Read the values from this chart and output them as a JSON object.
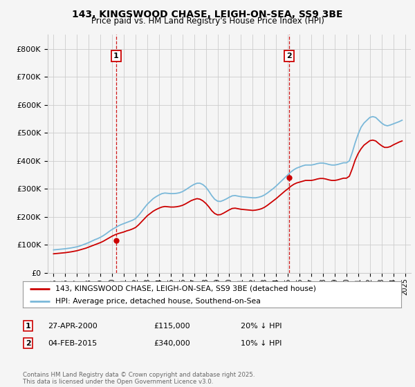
{
  "title": "143, KINGSWOOD CHASE, LEIGH-ON-SEA, SS9 3BE",
  "subtitle": "Price paid vs. HM Land Registry's House Price Index (HPI)",
  "legend_line1": "143, KINGSWOOD CHASE, LEIGH-ON-SEA, SS9 3BE (detached house)",
  "legend_line2": "HPI: Average price, detached house, Southend-on-Sea",
  "sale1_date": "27-APR-2000",
  "sale1_price": "£115,000",
  "sale1_hpi": "20% ↓ HPI",
  "sale1_x": 2000.32,
  "sale1_y": 115000,
  "sale2_date": "04-FEB-2015",
  "sale2_price": "£340,000",
  "sale2_hpi": "10% ↓ HPI",
  "sale2_x": 2015.09,
  "sale2_y": 340000,
  "dashed_line1_x": 2000.32,
  "dashed_line2_x": 2015.09,
  "ylim": [
    0,
    850000
  ],
  "xlim": [
    1994.5,
    2025.5
  ],
  "yticks": [
    0,
    100000,
    200000,
    300000,
    400000,
    500000,
    600000,
    700000,
    800000
  ],
  "xticks": [
    1995,
    1996,
    1997,
    1998,
    1999,
    2000,
    2001,
    2002,
    2003,
    2004,
    2005,
    2006,
    2007,
    2008,
    2009,
    2010,
    2011,
    2012,
    2013,
    2014,
    2015,
    2016,
    2017,
    2018,
    2019,
    2020,
    2021,
    2022,
    2023,
    2024,
    2025
  ],
  "hpi_color": "#7ab8d9",
  "price_color": "#cc0000",
  "dashed_color": "#cc0000",
  "background_color": "#f5f5f5",
  "grid_color": "#cccccc",
  "footer": "Contains HM Land Registry data © Crown copyright and database right 2025.\nThis data is licensed under the Open Government Licence v3.0.",
  "hpi_data_x": [
    1995.0,
    1995.25,
    1995.5,
    1995.75,
    1996.0,
    1996.25,
    1996.5,
    1996.75,
    1997.0,
    1997.25,
    1997.5,
    1997.75,
    1998.0,
    1998.25,
    1998.5,
    1998.75,
    1999.0,
    1999.25,
    1999.5,
    1999.75,
    2000.0,
    2000.25,
    2000.5,
    2000.75,
    2001.0,
    2001.25,
    2001.5,
    2001.75,
    2002.0,
    2002.25,
    2002.5,
    2002.75,
    2003.0,
    2003.25,
    2003.5,
    2003.75,
    2004.0,
    2004.25,
    2004.5,
    2004.75,
    2005.0,
    2005.25,
    2005.5,
    2005.75,
    2006.0,
    2006.25,
    2006.5,
    2006.75,
    2007.0,
    2007.25,
    2007.5,
    2007.75,
    2008.0,
    2008.25,
    2008.5,
    2008.75,
    2009.0,
    2009.25,
    2009.5,
    2009.75,
    2010.0,
    2010.25,
    2010.5,
    2010.75,
    2011.0,
    2011.25,
    2011.5,
    2011.75,
    2012.0,
    2012.25,
    2012.5,
    2012.75,
    2013.0,
    2013.25,
    2013.5,
    2013.75,
    2014.0,
    2014.25,
    2014.5,
    2014.75,
    2015.0,
    2015.25,
    2015.5,
    2015.75,
    2016.0,
    2016.25,
    2016.5,
    2016.75,
    2017.0,
    2017.25,
    2017.5,
    2017.75,
    2018.0,
    2018.25,
    2018.5,
    2018.75,
    2019.0,
    2019.25,
    2019.5,
    2019.75,
    2020.0,
    2020.25,
    2020.5,
    2020.75,
    2021.0,
    2021.25,
    2021.5,
    2021.75,
    2022.0,
    2022.25,
    2022.5,
    2022.75,
    2023.0,
    2023.25,
    2023.5,
    2023.75,
    2024.0,
    2024.25,
    2024.5,
    2024.75
  ],
  "hpi_data_y": [
    82000,
    83000,
    84000,
    85000,
    86000,
    87500,
    89000,
    91000,
    93000,
    96000,
    100000,
    104000,
    108000,
    113000,
    118000,
    122000,
    127000,
    133000,
    140000,
    148000,
    155000,
    161000,
    167000,
    172000,
    176000,
    180000,
    184000,
    188000,
    194000,
    205000,
    218000,
    232000,
    245000,
    255000,
    265000,
    272000,
    278000,
    283000,
    285000,
    284000,
    283000,
    283000,
    284000,
    286000,
    290000,
    296000,
    303000,
    310000,
    316000,
    320000,
    320000,
    315000,
    306000,
    292000,
    276000,
    263000,
    256000,
    255000,
    259000,
    264000,
    270000,
    275000,
    276000,
    274000,
    272000,
    271000,
    270000,
    269000,
    268000,
    268000,
    270000,
    273000,
    278000,
    285000,
    293000,
    301000,
    310000,
    320000,
    330000,
    340000,
    350000,
    360000,
    368000,
    374000,
    378000,
    382000,
    385000,
    385000,
    385000,
    387000,
    390000,
    392000,
    392000,
    390000,
    387000,
    385000,
    385000,
    387000,
    390000,
    393000,
    393000,
    400000,
    430000,
    465000,
    495000,
    520000,
    535000,
    545000,
    555000,
    558000,
    555000,
    545000,
    535000,
    528000,
    525000,
    528000,
    532000,
    536000,
    540000,
    545000
  ],
  "price_data_x": [
    1995.0,
    1995.25,
    1995.5,
    1995.75,
    1996.0,
    1996.25,
    1996.5,
    1996.75,
    1997.0,
    1997.25,
    1997.5,
    1997.75,
    1998.0,
    1998.25,
    1998.5,
    1998.75,
    1999.0,
    1999.25,
    1999.5,
    1999.75,
    2000.0,
    2000.25,
    2000.5,
    2000.75,
    2001.0,
    2001.25,
    2001.5,
    2001.75,
    2002.0,
    2002.25,
    2002.5,
    2002.75,
    2003.0,
    2003.25,
    2003.5,
    2003.75,
    2004.0,
    2004.25,
    2004.5,
    2004.75,
    2005.0,
    2005.25,
    2005.5,
    2005.75,
    2006.0,
    2006.25,
    2006.5,
    2006.75,
    2007.0,
    2007.25,
    2007.5,
    2007.75,
    2008.0,
    2008.25,
    2008.5,
    2008.75,
    2009.0,
    2009.25,
    2009.5,
    2009.75,
    2010.0,
    2010.25,
    2010.5,
    2010.75,
    2011.0,
    2011.25,
    2011.5,
    2011.75,
    2012.0,
    2012.25,
    2012.5,
    2012.75,
    2013.0,
    2013.25,
    2013.5,
    2013.75,
    2014.0,
    2014.25,
    2014.5,
    2014.75,
    2015.0,
    2015.25,
    2015.5,
    2015.75,
    2016.0,
    2016.25,
    2016.5,
    2016.75,
    2017.0,
    2017.25,
    2017.5,
    2017.75,
    2018.0,
    2018.25,
    2018.5,
    2018.75,
    2019.0,
    2019.25,
    2019.5,
    2019.75,
    2020.0,
    2020.25,
    2020.5,
    2020.75,
    2021.0,
    2021.25,
    2021.5,
    2021.75,
    2022.0,
    2022.25,
    2022.5,
    2022.75,
    2023.0,
    2023.25,
    2023.5,
    2023.75,
    2024.0,
    2024.25,
    2024.5,
    2024.75
  ],
  "price_data_y": [
    68000,
    69000,
    70000,
    71000,
    72000,
    73500,
    75000,
    77000,
    79000,
    82000,
    85000,
    88000,
    92000,
    96000,
    100000,
    104000,
    108000,
    113000,
    119000,
    125000,
    131000,
    136000,
    140000,
    143000,
    146000,
    150000,
    153000,
    157000,
    162000,
    171000,
    182000,
    193000,
    204000,
    212000,
    220000,
    226000,
    231000,
    235000,
    237000,
    236000,
    235000,
    235000,
    236000,
    238000,
    241000,
    246000,
    252000,
    258000,
    262000,
    265000,
    263000,
    257000,
    248000,
    236000,
    222000,
    212000,
    207000,
    208000,
    213000,
    219000,
    225000,
    230000,
    231000,
    229000,
    227000,
    226000,
    225000,
    224000,
    223000,
    224000,
    226000,
    229000,
    234000,
    241000,
    249000,
    257000,
    265000,
    274000,
    283000,
    292000,
    300000,
    309000,
    316000,
    321000,
    324000,
    327000,
    330000,
    330000,
    330000,
    332000,
    335000,
    337000,
    337000,
    335000,
    332000,
    330000,
    330000,
    332000,
    335000,
    338000,
    338000,
    345000,
    372000,
    403000,
    426000,
    443000,
    456000,
    464000,
    472000,
    474000,
    471000,
    462000,
    454000,
    448000,
    448000,
    451000,
    457000,
    462000,
    467000,
    471000
  ]
}
